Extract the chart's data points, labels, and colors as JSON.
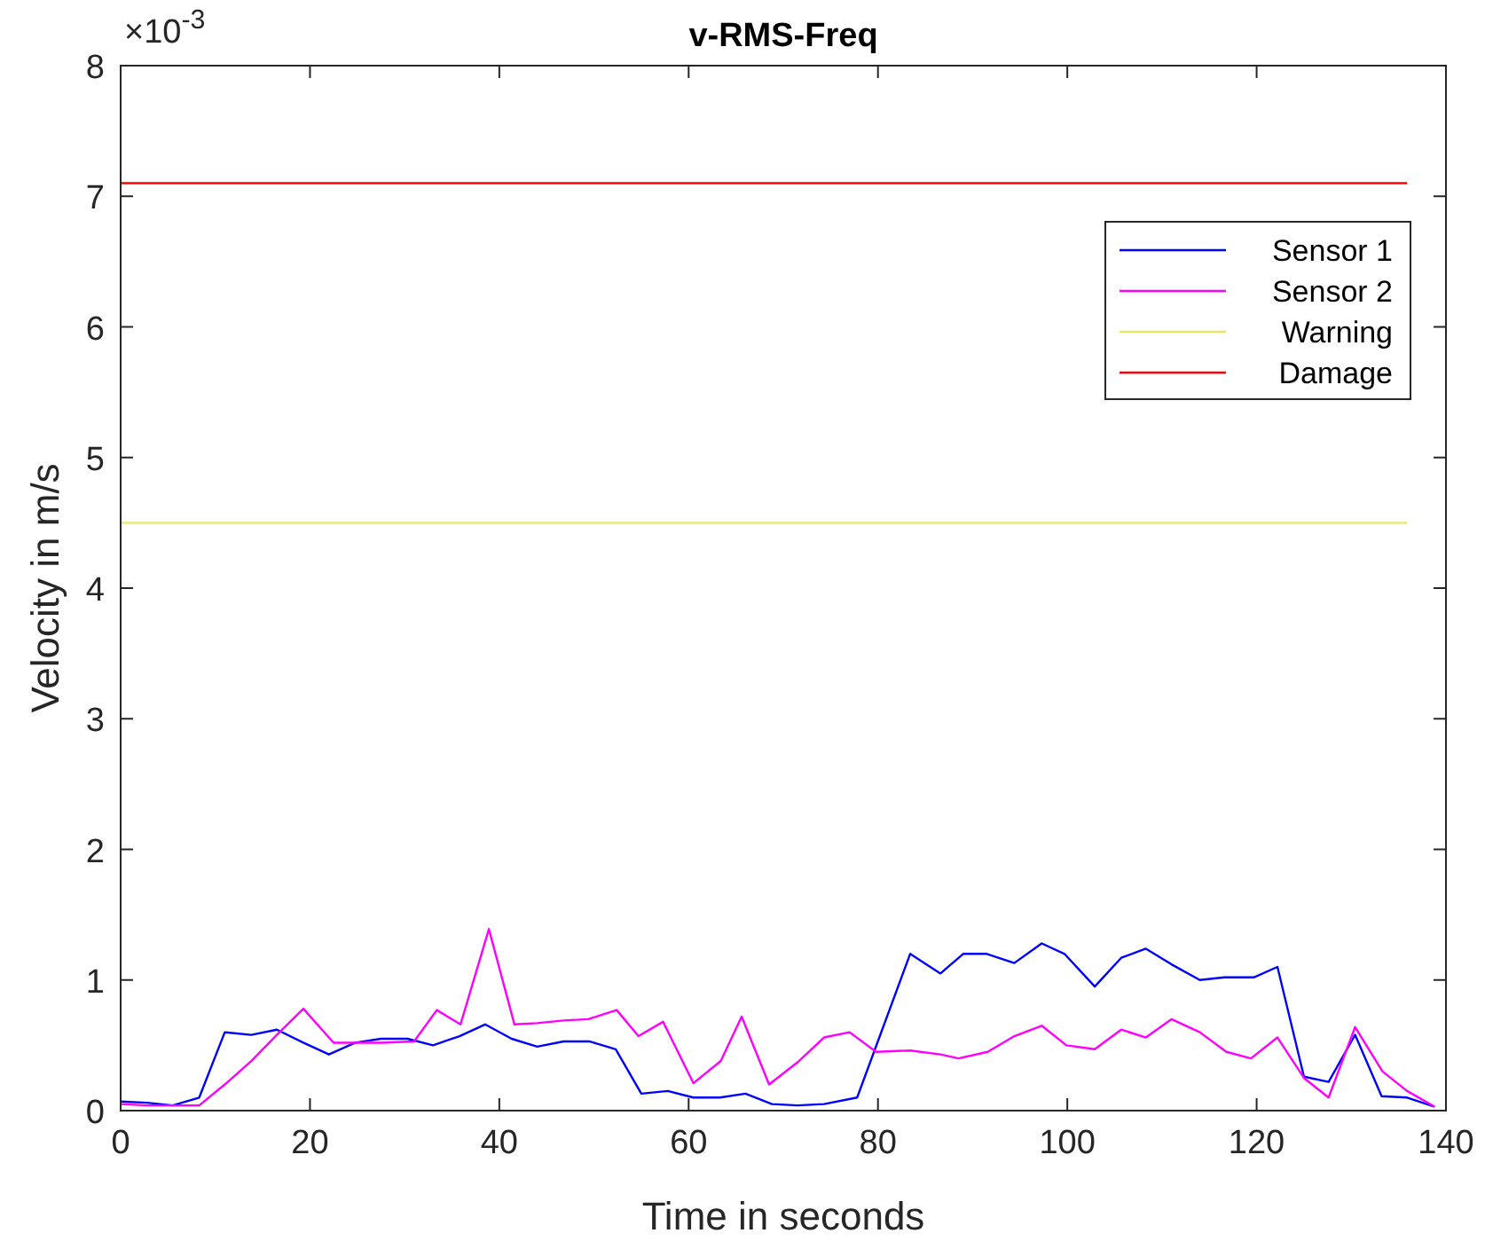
{
  "chart_data": {
    "type": "line",
    "title": "v-RMS-Freq",
    "xlabel": "Time in seconds",
    "ylabel": "Velocity in m/s",
    "xlim": [
      0,
      140
    ],
    "xticks": [
      0,
      20,
      40,
      60,
      80,
      100,
      120,
      140
    ],
    "ylim": [
      0,
      8
    ],
    "yticks": [
      0,
      1,
      2,
      3,
      4,
      5,
      6,
      7,
      8
    ],
    "annotations": [
      "×10$^{-3}$"
    ],
    "legend": "top right",
    "grid": false,
    "series": [
      {
        "name": "Sensor 1",
        "color": "#0000ff",
        "x": [
          0,
          2.8,
          5.5,
          8.3,
          11,
          13.8,
          16.5,
          19.3,
          22,
          24.8,
          27.5,
          30.3,
          33,
          35.8,
          38.5,
          41.3,
          44,
          46.8,
          49.5,
          52.3,
          55,
          57.8,
          60.5,
          63.3,
          66,
          68.8,
          71.5,
          74.3,
          77.8,
          83.4,
          86.6,
          89,
          91.5,
          94.4,
          97.3,
          99.7,
          102.9,
          105.7,
          108.3,
          111,
          114,
          116.6,
          119.7,
          122.2,
          125,
          127.6,
          130.4,
          133.2,
          135.9,
          138.8
        ],
        "values": [
          0.07,
          0.06,
          0.04,
          0.1,
          0.6,
          0.58,
          0.62,
          0.52,
          0.43,
          0.52,
          0.55,
          0.55,
          0.5,
          0.57,
          0.66,
          0.55,
          0.49,
          0.53,
          0.53,
          0.47,
          0.13,
          0.15,
          0.1,
          0.1,
          0.13,
          0.05,
          0.04,
          0.05,
          0.1,
          1.2,
          1.05,
          1.2,
          1.2,
          1.13,
          1.28,
          1.2,
          0.95,
          1.17,
          1.24,
          1.12,
          1.0,
          1.02,
          1.02,
          1.1,
          0.26,
          0.22,
          0.58,
          0.11,
          0.1,
          0.03
        ]
      },
      {
        "name": "Sensor 2",
        "color": "#ff00ff",
        "x": [
          0,
          2.8,
          5.5,
          8.3,
          11,
          13.8,
          16.5,
          19.3,
          22.5,
          24.8,
          27.5,
          31,
          33.4,
          35.9,
          38.9,
          41.6,
          44,
          46.8,
          49.4,
          52.4,
          54.7,
          57.3,
          60.5,
          63.4,
          65.6,
          68.5,
          71.5,
          74.3,
          77,
          79.8,
          83.4,
          86.6,
          88.5,
          91.6,
          94.4,
          97.3,
          99.9,
          102.9,
          105.7,
          108.3,
          111,
          114,
          116.8,
          119.4,
          122.2,
          125,
          127.6,
          130.4,
          133.3,
          135.9,
          138.8
        ],
        "values": [
          0.05,
          0.04,
          0.04,
          0.04,
          0.2,
          0.38,
          0.58,
          0.78,
          0.52,
          0.52,
          0.52,
          0.53,
          0.77,
          0.66,
          1.39,
          0.66,
          0.67,
          0.69,
          0.7,
          0.77,
          0.57,
          0.68,
          0.21,
          0.38,
          0.72,
          0.2,
          0.37,
          0.56,
          0.6,
          0.45,
          0.46,
          0.43,
          0.4,
          0.45,
          0.57,
          0.65,
          0.5,
          0.47,
          0.62,
          0.56,
          0.7,
          0.6,
          0.45,
          0.4,
          0.56,
          0.25,
          0.1,
          0.64,
          0.3,
          0.15,
          0.03
        ]
      },
      {
        "name": "Warning",
        "color": "#e8e860",
        "x": [
          0,
          135.9
        ],
        "values": [
          4.5,
          4.5
        ]
      },
      {
        "name": "Damage",
        "color": "#ff0000",
        "x": [
          0,
          135.9
        ],
        "values": [
          7.1,
          7.1
        ]
      }
    ]
  }
}
